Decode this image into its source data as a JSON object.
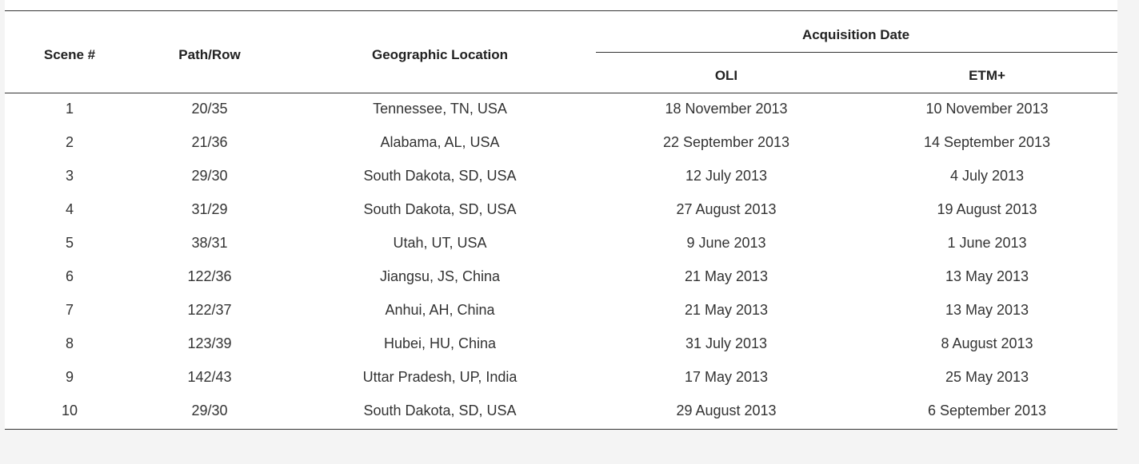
{
  "table": {
    "headers": {
      "scene": "Scene #",
      "path_row": "Path/Row",
      "location": "Geographic Location",
      "acquisition": "Acquisition Date",
      "oli": "OLI",
      "etm": "ETM+"
    },
    "rows": [
      {
        "scene": "1",
        "path_row": "20/35",
        "location": "Tennessee, TN, USA",
        "oli": "18 November 2013",
        "etm": "10 November 2013"
      },
      {
        "scene": "2",
        "path_row": "21/36",
        "location": "Alabama, AL, USA",
        "oli": "22 September 2013",
        "etm": "14 September 2013"
      },
      {
        "scene": "3",
        "path_row": "29/30",
        "location": "South Dakota, SD, USA",
        "oli": "12 July 2013",
        "etm": "4 July 2013"
      },
      {
        "scene": "4",
        "path_row": "31/29",
        "location": "South Dakota, SD, USA",
        "oli": "27 August 2013",
        "etm": "19 August 2013"
      },
      {
        "scene": "5",
        "path_row": "38/31",
        "location": "Utah, UT, USA",
        "oli": "9 June 2013",
        "etm": "1 June 2013"
      },
      {
        "scene": "6",
        "path_row": "122/36",
        "location": "Jiangsu, JS, China",
        "oli": "21 May 2013",
        "etm": "13 May 2013"
      },
      {
        "scene": "7",
        "path_row": "122/37",
        "location": "Anhui, AH, China",
        "oli": "21 May 2013",
        "etm": "13 May 2013"
      },
      {
        "scene": "8",
        "path_row": "123/39",
        "location": "Hubei, HU, China",
        "oli": "31 July 2013",
        "etm": "8 August 2013"
      },
      {
        "scene": "9",
        "path_row": "142/43",
        "location": "Uttar Pradesh, UP, India",
        "oli": "17 May 2013",
        "etm": "25 May 2013"
      },
      {
        "scene": "10",
        "path_row": "29/30",
        "location": "South Dakota, SD, USA",
        "oli": "29 August 2013",
        "etm": "6 September 2013"
      }
    ]
  }
}
